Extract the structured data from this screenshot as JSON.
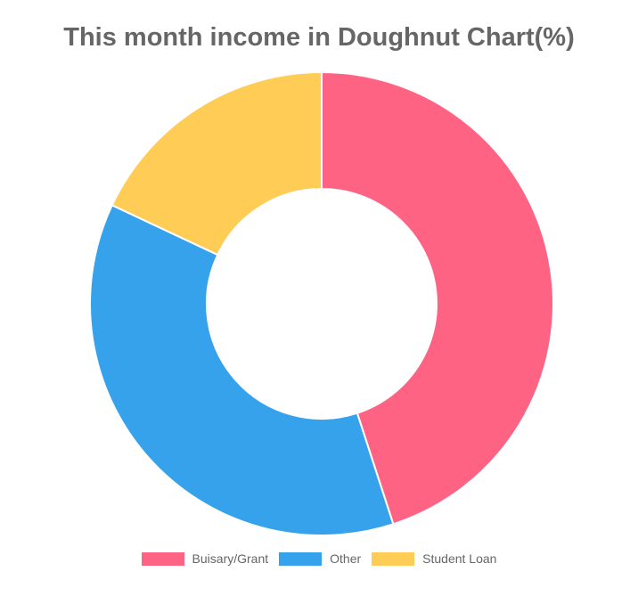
{
  "chart_data": {
    "type": "doughnut",
    "title": "This month income in Doughnut Chart(%)",
    "categories": [
      "Buisary/Grant",
      "Other",
      "Student Loan"
    ],
    "values": [
      45,
      37,
      18
    ],
    "colors": [
      "#ff6384",
      "#36a2eb",
      "#ffcd56"
    ],
    "legend_position": "bottom"
  }
}
